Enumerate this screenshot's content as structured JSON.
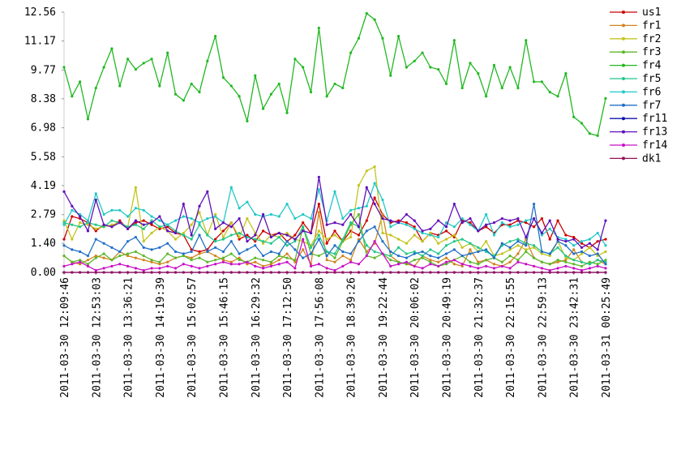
{
  "chart_data": {
    "type": "line",
    "categories": [
      "2011-03-30 12:09:46",
      null,
      null,
      null,
      "2011-03-30 12:53:03",
      null,
      null,
      null,
      "2011-03-30 13:36:21",
      null,
      null,
      null,
      "2011-03-30 14:19:39",
      null,
      null,
      null,
      "2011-03-30 15:02:57",
      null,
      null,
      null,
      "2011-03-30 15:46:15",
      null,
      null,
      null,
      "2011-03-30 16:29:32",
      null,
      null,
      null,
      "2011-03-30 17:12:50",
      null,
      null,
      null,
      "2011-03-30 17:56:08",
      null,
      null,
      null,
      "2011-03-30 18:39:26",
      null,
      null,
      null,
      "2011-03-30 19:22:44",
      null,
      null,
      null,
      "2011-03-30 20:06:02",
      null,
      null,
      null,
      "2011-03-30 20:49:19",
      null,
      null,
      null,
      "2011-03-30 21:32:37",
      null,
      null,
      null,
      "2011-03-30 22:15:55",
      null,
      null,
      null,
      "2011-03-30 22:59:13",
      null,
      null,
      null,
      "2011-03-30 23:42:31",
      null,
      null,
      null,
      "2011-03-31 00:25:49"
    ],
    "ylim": [
      0,
      12.56
    ],
    "yticks": [
      {
        "value": 0,
        "label": "0.00"
      },
      {
        "value": 1.4,
        "label": "1.40"
      },
      {
        "value": 2.79,
        "label": "2.79"
      },
      {
        "value": 4.19,
        "label": "4.19"
      },
      {
        "value": 5.58,
        "label": "5.58"
      },
      {
        "value": 6.98,
        "label": "6.98"
      },
      {
        "value": 8.38,
        "label": "8.38"
      },
      {
        "value": 9.77,
        "label": "9.77"
      },
      {
        "value": 11.17,
        "label": "11.17"
      },
      {
        "value": 12.56,
        "label": "12.56"
      }
    ],
    "grid": false,
    "legend": "right",
    "series": [
      {
        "name": "us1",
        "color": "#cc0000",
        "values": [
          1.6,
          2.7,
          2.6,
          2.4,
          2.0,
          2.3,
          2.2,
          2.5,
          2.1,
          2.4,
          2.5,
          2.3,
          2.1,
          2.2,
          1.9,
          1.8,
          1.1,
          1.0,
          1.1,
          1.6,
          2.0,
          2.4,
          1.6,
          1.8,
          1.5,
          2.0,
          1.8,
          1.9,
          1.5,
          1.8,
          2.4,
          1.9,
          3.3,
          1.4,
          2.0,
          1.5,
          2.0,
          1.8,
          2.5,
          3.6,
          2.8,
          2.4,
          2.5,
          2.4,
          2.2,
          1.5,
          1.9,
          1.8,
          2.0,
          1.7,
          2.5,
          2.4,
          2.0,
          2.2,
          1.9,
          2.3,
          2.3,
          2.5,
          2.4,
          2.2,
          2.6,
          1.6,
          2.5,
          1.8,
          1.7,
          1.4,
          1.2,
          1.5,
          1.6
        ]
      },
      {
        "name": "fr1",
        "color": "#d0841c",
        "values": [
          0.8,
          0.5,
          0.4,
          0.6,
          0.8,
          0.7,
          0.6,
          1.0,
          0.8,
          0.7,
          0.6,
          0.5,
          0.4,
          0.5,
          0.7,
          0.8,
          0.7,
          0.9,
          1.0,
          0.8,
          0.6,
          0.5,
          0.7,
          0.4,
          0.5,
          0.3,
          0.4,
          0.6,
          0.9,
          0.5,
          1.1,
          0.4,
          2.9,
          0.6,
          0.5,
          0.8,
          0.6,
          1.6,
          1.0,
          1.4,
          2.8,
          0.8,
          0.5,
          0.4,
          0.3,
          0.8,
          0.6,
          0.5,
          0.7,
          0.4,
          0.3,
          1.1,
          0.5,
          0.6,
          0.4,
          0.3,
          0.5,
          0.9,
          1.6,
          0.7,
          0.5,
          0.4,
          0.5,
          0.6,
          1.1,
          0.5,
          0.4,
          0.6,
          0.4
        ]
      },
      {
        "name": "fr2",
        "color": "#c4c41c",
        "values": [
          2.5,
          1.6,
          2.4,
          2.3,
          2.1,
          2.2,
          2.3,
          2.4,
          2.2,
          4.1,
          1.5,
          1.9,
          2.2,
          2.0,
          1.6,
          1.9,
          2.3,
          2.9,
          1.8,
          2.8,
          1.7,
          2.4,
          1.7,
          2.6,
          1.9,
          1.4,
          1.8,
          1.7,
          1.9,
          1.6,
          1.5,
          1.3,
          2.0,
          1.6,
          1.8,
          1.5,
          1.7,
          4.2,
          4.9,
          5.1,
          1.9,
          1.8,
          1.6,
          1.4,
          1.8,
          1.5,
          1.9,
          1.4,
          1.6,
          1.8,
          1.2,
          1.4,
          1.0,
          1.5,
          0.8,
          0.9,
          1.1,
          1.3,
          1.1,
          1.2,
          0.9,
          0.8,
          1.5,
          0.7,
          0.6,
          0.9,
          1.2,
          0.8,
          1.0
        ]
      },
      {
        "name": "fr3",
        "color": "#5cb82c",
        "values": [
          0.8,
          0.5,
          0.6,
          0.4,
          0.7,
          0.9,
          0.6,
          0.8,
          0.9,
          1.0,
          0.8,
          0.6,
          0.5,
          0.9,
          0.7,
          0.8,
          0.6,
          0.7,
          0.5,
          0.6,
          0.7,
          0.9,
          0.6,
          0.5,
          0.7,
          0.6,
          0.5,
          0.8,
          0.7,
          0.6,
          2.2,
          0.9,
          0.8,
          1.0,
          0.7,
          1.5,
          2.3,
          2.8,
          0.8,
          0.7,
          0.9,
          0.6,
          0.5,
          0.4,
          0.6,
          0.7,
          0.5,
          0.3,
          0.4,
          0.6,
          0.8,
          0.5,
          0.4,
          0.6,
          0.7,
          0.5,
          0.8,
          0.6,
          1.0,
          0.7,
          0.5,
          0.4,
          0.6,
          0.5,
          0.4,
          0.3,
          0.5,
          0.4,
          0.6
        ]
      },
      {
        "name": "fr4",
        "color": "#22b822",
        "values": [
          9.9,
          8.5,
          9.2,
          7.4,
          8.9,
          9.9,
          10.8,
          9.0,
          10.3,
          9.8,
          10.1,
          10.3,
          9.0,
          10.6,
          8.6,
          8.3,
          9.1,
          8.7,
          10.2,
          11.4,
          9.4,
          9.0,
          8.5,
          7.3,
          9.5,
          7.9,
          8.6,
          9.1,
          7.7,
          10.3,
          9.9,
          8.7,
          11.8,
          8.5,
          9.1,
          8.9,
          10.6,
          11.3,
          12.5,
          12.2,
          11.3,
          9.5,
          11.4,
          9.9,
          10.2,
          10.6,
          9.9,
          9.8,
          9.1,
          11.2,
          8.9,
          10.1,
          9.6,
          8.5,
          10.0,
          8.9,
          9.9,
          8.9,
          11.2,
          9.2,
          9.2,
          8.7,
          8.5,
          9.6,
          7.5,
          7.2,
          6.7,
          6.6,
          8.4
        ]
      },
      {
        "name": "fr5",
        "color": "#22c88a",
        "values": [
          2.4,
          2.3,
          2.2,
          2.4,
          2.3,
          2.2,
          2.5,
          2.4,
          2.2,
          2.3,
          2.1,
          2.5,
          2.2,
          2.3,
          2.0,
          1.8,
          1.6,
          2.3,
          1.8,
          1.5,
          1.6,
          1.8,
          1.9,
          1.7,
          1.6,
          1.5,
          1.4,
          1.7,
          1.3,
          1.5,
          2.2,
          1.2,
          1.8,
          1.0,
          0.9,
          1.6,
          2.4,
          2.2,
          1.3,
          1.0,
          0.9,
          0.8,
          1.2,
          0.9,
          1.0,
          0.8,
          1.1,
          0.9,
          1.3,
          1.5,
          1.6,
          1.4,
          1.2,
          1.0,
          0.8,
          1.3,
          1.5,
          1.6,
          1.4,
          1.3,
          1.0,
          0.9,
          1.2,
          0.8,
          0.6,
          0.5,
          0.4,
          0.6,
          0.5
        ]
      },
      {
        "name": "fr6",
        "color": "#22c8c8",
        "values": [
          2.3,
          3.0,
          2.8,
          2.5,
          3.8,
          2.8,
          3.0,
          3.0,
          2.7,
          3.1,
          3.0,
          2.7,
          2.5,
          2.3,
          2.5,
          2.7,
          2.6,
          2.4,
          2.6,
          2.7,
          2.4,
          4.1,
          3.1,
          3.4,
          2.8,
          2.7,
          2.8,
          2.7,
          3.3,
          2.6,
          2.8,
          2.6,
          4.0,
          2.5,
          3.9,
          2.6,
          3.0,
          3.1,
          3.2,
          4.3,
          3.5,
          2.2,
          2.4,
          2.3,
          2.1,
          1.9,
          1.8,
          1.7,
          2.4,
          2.2,
          2.6,
          2.3,
          2.0,
          2.8,
          1.8,
          2.4,
          2.2,
          2.3,
          2.5,
          2.6,
          1.8,
          2.1,
          1.7,
          1.6,
          1.3,
          1.5,
          1.6,
          1.9,
          1.3
        ]
      },
      {
        "name": "fr7",
        "color": "#2270c8",
        "values": [
          1.3,
          1.1,
          1.0,
          0.8,
          1.6,
          1.4,
          1.2,
          1.0,
          1.5,
          1.7,
          1.2,
          1.1,
          1.2,
          1.4,
          1.0,
          0.9,
          1.0,
          1.8,
          1.0,
          1.2,
          1.0,
          1.5,
          0.9,
          1.1,
          1.3,
          0.8,
          1.0,
          0.9,
          1.5,
          1.1,
          0.7,
          0.9,
          1.6,
          0.8,
          1.3,
          1.0,
          0.9,
          1.5,
          2.0,
          2.2,
          1.5,
          1.0,
          0.8,
          0.7,
          0.9,
          1.0,
          0.8,
          0.7,
          0.9,
          1.1,
          0.8,
          0.9,
          1.0,
          1.1,
          0.7,
          1.4,
          1.2,
          1.5,
          1.3,
          3.3,
          1.0,
          0.9,
          1.5,
          1.3,
          0.9,
          1.0,
          0.8,
          0.9,
          0.4
        ]
      },
      {
        "name": "fr11",
        "color": "#1010a8",
        "values": [
          0,
          0,
          0,
          0,
          0,
          0,
          0,
          0,
          0,
          0,
          0,
          0,
          0,
          0,
          0,
          0,
          0,
          0,
          0,
          0,
          0,
          0,
          0,
          0,
          0,
          0,
          0,
          0,
          0,
          0,
          0,
          0,
          0,
          0,
          0,
          0,
          0,
          0,
          0,
          0,
          0,
          0,
          0,
          0,
          0,
          0,
          0,
          0,
          0,
          0,
          0,
          0,
          0,
          0,
          0,
          0,
          0,
          0,
          0,
          0,
          0,
          0,
          0,
          0,
          0,
          0,
          0,
          0,
          0
        ]
      },
      {
        "name": "fr13",
        "color": "#6010b8",
        "values": [
          3.9,
          3.2,
          2.7,
          2.0,
          3.5,
          2.3,
          2.2,
          2.4,
          2.1,
          2.5,
          2.3,
          2.4,
          2.7,
          2.0,
          1.9,
          3.3,
          1.8,
          3.2,
          3.9,
          2.1,
          2.4,
          2.2,
          2.6,
          1.5,
          1.8,
          2.8,
          1.7,
          1.9,
          1.8,
          1.6,
          2.0,
          1.9,
          4.6,
          2.3,
          2.4,
          2.3,
          2.8,
          2.2,
          4.1,
          3.3,
          2.6,
          2.5,
          2.4,
          2.8,
          2.5,
          2.0,
          2.1,
          2.5,
          2.2,
          3.3,
          2.4,
          2.6,
          2.0,
          2.3,
          2.4,
          2.6,
          2.5,
          2.6,
          1.7,
          2.6,
          1.9,
          2.5,
          1.6,
          1.5,
          1.6,
          1.2,
          1.4,
          1.1,
          2.5
        ]
      },
      {
        "name": "fr14",
        "color": "#c810c8",
        "values": [
          0.3,
          0.4,
          0.5,
          0.3,
          0.1,
          0.2,
          0.3,
          0.4,
          0.3,
          0.2,
          0.1,
          0.2,
          0.2,
          0.3,
          0.2,
          0.4,
          0.3,
          0.2,
          0.3,
          0.4,
          0.5,
          0.4,
          0.4,
          0.5,
          0.3,
          0.2,
          0.3,
          0.4,
          0.5,
          0.2,
          1.6,
          0.3,
          0.4,
          0.2,
          0.1,
          0.3,
          0.5,
          0.4,
          0.8,
          1.5,
          0.9,
          0.3,
          0.4,
          0.5,
          0.3,
          0.2,
          0.4,
          0.3,
          0.5,
          0.6,
          0.4,
          0.3,
          0.2,
          0.3,
          0.2,
          0.3,
          0.2,
          0.5,
          0.4,
          0.3,
          0.2,
          0.1,
          0.2,
          0.3,
          0.2,
          0.1,
          0.2,
          0.3,
          0.2
        ]
      },
      {
        "name": "dk1",
        "color": "#98105a",
        "values": [
          0,
          0,
          0,
          0,
          0,
          0,
          0,
          0,
          0,
          0,
          0,
          0,
          0,
          0,
          0,
          0,
          0,
          0,
          0,
          0,
          0,
          0,
          0,
          0,
          0,
          0,
          0,
          0,
          0,
          0,
          0,
          0,
          0,
          0,
          0,
          0,
          0,
          0,
          0,
          0,
          0,
          0,
          0,
          0,
          0,
          0,
          0,
          0,
          0,
          0,
          0,
          0,
          0,
          0,
          0,
          0,
          0,
          0,
          0,
          0,
          0,
          0,
          0,
          0,
          0,
          0,
          0,
          0,
          0
        ]
      }
    ]
  }
}
